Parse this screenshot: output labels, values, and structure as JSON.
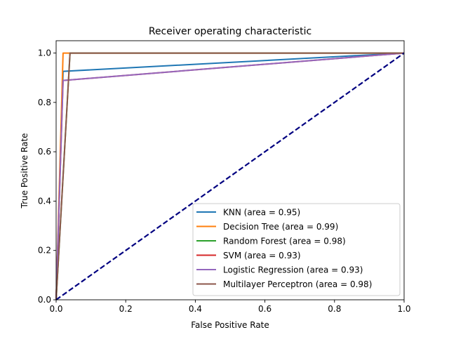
{
  "chart_data": {
    "type": "line",
    "title": "Receiver operating characteristic",
    "xlabel": "False Positive Rate",
    "ylabel": "True Positive Rate",
    "xlim": [
      0.0,
      1.0
    ],
    "ylim": [
      0.0,
      1.05
    ],
    "x_ticks": [
      "0.0",
      "0.2",
      "0.4",
      "0.6",
      "0.8",
      "1.0"
    ],
    "y_ticks": [
      "0.0",
      "0.2",
      "0.4",
      "0.6",
      "0.8",
      "1.0"
    ],
    "grid": false,
    "legend_position": "lower-right",
    "series": [
      {
        "name": "KNN (area = 0.95)",
        "color": "#1f77b4",
        "x": [
          0,
          0.02,
          1
        ],
        "y": [
          0,
          0.926,
          1
        ]
      },
      {
        "name": "Decision Tree (area = 0.99)",
        "color": "#ff7f0e",
        "x": [
          0,
          0.02,
          1
        ],
        "y": [
          0,
          1.0,
          1
        ]
      },
      {
        "name": "Random Forest (area = 0.98)",
        "color": "#2ca02c",
        "x": [
          0,
          0.04,
          1
        ],
        "y": [
          0,
          1.0,
          1
        ]
      },
      {
        "name": "SVM (area = 0.93)",
        "color": "#d62728",
        "x": [
          0,
          0.02,
          1
        ],
        "y": [
          0,
          0.889,
          1
        ]
      },
      {
        "name": "Logistic Regression (area = 0.93)",
        "color": "#9467bd",
        "x": [
          0,
          0.02,
          1
        ],
        "y": [
          0,
          0.889,
          1
        ]
      },
      {
        "name": "Multilayer Perceptron (area = 0.98)",
        "color": "#8c564b",
        "x": [
          0,
          0.04,
          1
        ],
        "y": [
          0,
          1.0,
          1
        ]
      }
    ],
    "reference_line": {
      "x": [
        0,
        1
      ],
      "y": [
        0,
        1
      ],
      "color": "#000080",
      "style": "dashed"
    }
  }
}
